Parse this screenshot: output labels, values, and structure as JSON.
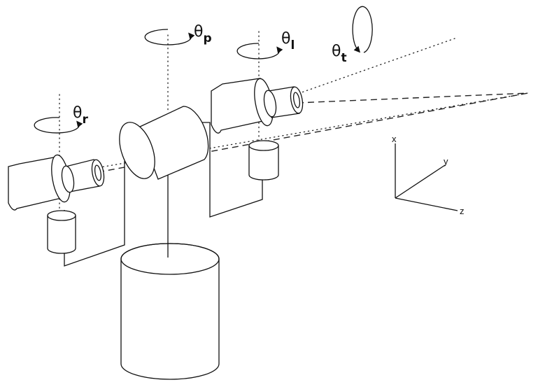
{
  "figure": {
    "angle_labels": [
      {
        "symbol": "θ",
        "subscript": "p"
      },
      {
        "symbol": "θ",
        "subscript": "l"
      },
      {
        "symbol": "θ",
        "subscript": "t"
      },
      {
        "symbol": "θ",
        "subscript": "r"
      }
    ],
    "axes": {
      "x": "x",
      "y": "y",
      "z": "z"
    }
  }
}
